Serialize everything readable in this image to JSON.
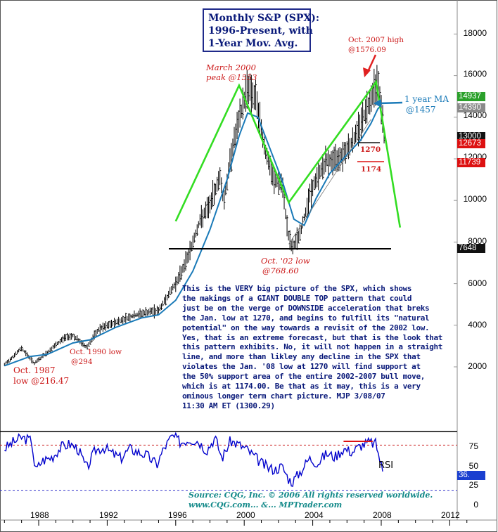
{
  "title": {
    "line1": "Monthly S&P (SPX):",
    "line2": "1996-Present, with",
    "line3": "1-Year Mov. Avg."
  },
  "annotations": {
    "high_2007_line1": "Oct. 2007 high",
    "high_2007_line2": "@1576.09",
    "peak_2000_line1": "March 2000",
    "peak_2000_line2": "peak @1553",
    "ma_line1": "1 year MA",
    "ma_line2": "@1457",
    "level_1270": "1270",
    "level_1174": "1174",
    "low_2002_line1": "Oct. '02 low",
    "low_2002_line2": "@768.60",
    "low_1990_line1": "Oct. 1990 low",
    "low_1990_line2": "@294",
    "low_1987_line1": "Oct. 1987",
    "low_1987_line2": "low @216.47",
    "rsi_label": "RSI"
  },
  "commentary": [
    "This is the VERY big picture of the SPX, which shows",
    "the makings of a GIANT DOUBLE TOP pattern that could",
    "just be on the verge of DOWNSIDE acceleration that breks",
    "the Jan. low at 1270, and begins to fulfill its \"natural",
    "potential\" on the way towards a revisit of the 2002 low.",
    "Yes, that is an extreme forecast, but that is the look that",
    "this pattern exhibits. No, it will not happen in a straight",
    "line, and more than likley any decline in the SPX that",
    "violates the Jan. '08 low at 1270 will find support at",
    "the 50% support area of the entire 2002-2007 bull move,",
    "which is at 1174.00.  Be that as it may, this is a very",
    "ominous longer term chart picture. MJP 3/08/07",
    "11:30 AM ET  (1300.29)"
  ],
  "source": {
    "line1": "Source: CQG, Inc. © 2006 All rights reserved worldwide.",
    "line2": "www.CQG.com... &...  MPTrader.com"
  },
  "colors": {
    "price_bars": "#000000",
    "moving_average": "#1a7ab8",
    "pattern_lines": "#33dd22",
    "annotation_text": "#cc1a1a",
    "commentary_text": "#0a1a7a",
    "rsi_line": "#0000cc",
    "rsi_overbought": "#cc2222",
    "rsi_oversold": "#3333cc"
  },
  "chart_data": [
    {
      "type": "line",
      "title": "Monthly S&P (SPX): 1996-Present, with 1-Year Mov. Avg.",
      "xlabel": "",
      "ylabel": "",
      "x_ticks": [
        "1988",
        "1992",
        "1996",
        "2000",
        "2004",
        "2008",
        "2012"
      ],
      "y_ticks": [
        2000,
        4000,
        6000,
        8000,
        10000,
        12000,
        14000,
        16000,
        18000
      ],
      "xlim": [
        1986,
        2013
      ],
      "grid": false,
      "series": [
        {
          "name": "SPX monthly",
          "x": [
            1986.0,
            1987.0,
            1987.75,
            1988.5,
            1989.5,
            1990.0,
            1990.8,
            1991.5,
            1992.5,
            1993.5,
            1994.5,
            1995.0,
            1995.6,
            1996.2,
            1996.8,
            1997.4,
            1998.0,
            1998.6,
            1998.8,
            1999.3,
            1999.8,
            2000.2,
            2000.7,
            2001.2,
            2001.7,
            2002.2,
            2002.6,
            2002.8,
            2003.3,
            2003.8,
            2004.3,
            2004.8,
            2005.3,
            2005.8,
            2006.3,
            2006.8,
            2007.1,
            2007.5,
            2007.8,
            2008.0,
            2008.2
          ],
          "y": [
            2100,
            2900,
            2165,
            2700,
            3400,
            3500,
            2940,
            3800,
            4150,
            4450,
            4650,
            4700,
            5500,
            6300,
            7500,
            9000,
            9800,
            11200,
            9900,
            12500,
            14200,
            15530,
            14800,
            12500,
            11000,
            10800,
            8200,
            7686,
            8500,
            10200,
            11200,
            11900,
            11900,
            12300,
            12800,
            13700,
            14300,
            15200,
            15761,
            14500,
            12700
          ]
        },
        {
          "name": "1-Year Mov. Avg.",
          "x": [
            1986.0,
            1987.5,
            1988.5,
            1990.0,
            1991.0,
            1992.5,
            1994.0,
            1995.0,
            1996.0,
            1997.0,
            1998.0,
            1999.0,
            1999.7,
            2000.2,
            2000.8,
            2001.5,
            2002.2,
            2002.9,
            2003.5,
            2004.2,
            2005.0,
            2006.0,
            2006.8,
            2007.4,
            2007.8,
            2008.0
          ],
          "y": [
            2050,
            2500,
            2600,
            3150,
            3300,
            3900,
            4350,
            4500,
            5200,
            6600,
            8600,
            11000,
            13100,
            14200,
            14000,
            12500,
            11000,
            9100,
            8800,
            10100,
            11300,
            12200,
            12900,
            13700,
            14400,
            14570
          ]
        }
      ],
      "horizontal_levels": [
        7686,
        12700,
        11740
      ],
      "price_tags": [
        {
          "label": "14937",
          "color": "#2aa02a"
        },
        {
          "label": "14390",
          "color": "#8a8a8a"
        },
        {
          "label": "13000",
          "color": "#111111"
        },
        {
          "label": "12673",
          "color": "#dd1111"
        },
        {
          "label": "11739",
          "color": "#dd1111"
        },
        {
          "label": "7648",
          "color": "#111111"
        }
      ]
    },
    {
      "type": "line",
      "title": "RSI",
      "y_ticks": [
        0,
        25,
        50,
        75
      ],
      "ylim": [
        0,
        100
      ],
      "overbought_level": 75,
      "oversold_level": 25,
      "series": [
        {
          "name": "RSI",
          "x": [
            1986.0,
            1986.5,
            1987.0,
            1987.6,
            1987.8,
            1988.2,
            1988.8,
            1989.3,
            1989.8,
            1990.3,
            1990.8,
            1991.3,
            1991.8,
            1992.3,
            1992.8,
            1993.3,
            1993.8,
            1994.3,
            1994.9,
            1995.3,
            1995.8,
            1996.3,
            1996.8,
            1997.3,
            1997.8,
            1998.3,
            1998.7,
            1999.2,
            1999.6,
            2000.1,
            2000.6,
            2001.0,
            2001.4,
            2001.8,
            2002.2,
            2002.6,
            2002.8,
            2003.3,
            2003.8,
            2004.3,
            2004.8,
            2005.3,
            2005.8,
            2006.3,
            2006.8,
            2007.3,
            2007.7,
            2007.9,
            2008.1
          ],
          "y": [
            70,
            78,
            84,
            80,
            42,
            55,
            60,
            72,
            76,
            70,
            45,
            68,
            72,
            64,
            58,
            70,
            66,
            62,
            50,
            70,
            86,
            78,
            82,
            80,
            68,
            84,
            58,
            80,
            76,
            70,
            60,
            52,
            46,
            44,
            48,
            32,
            28,
            42,
            58,
            52,
            64,
            60,
            70,
            66,
            74,
            78,
            76,
            58,
            40
          ]
        }
      ]
    }
  ],
  "axes": {
    "y_price_labels": [
      "18000",
      "16000",
      "14000",
      "12000",
      "10000",
      "8000",
      "6000",
      "4000",
      "2000"
    ],
    "y_rsi_labels": [
      "75",
      "50",
      "25",
      "0"
    ],
    "x_labels": [
      "1988",
      "1992",
      "1996",
      "2000",
      "2004",
      "2008",
      "2012"
    ]
  }
}
